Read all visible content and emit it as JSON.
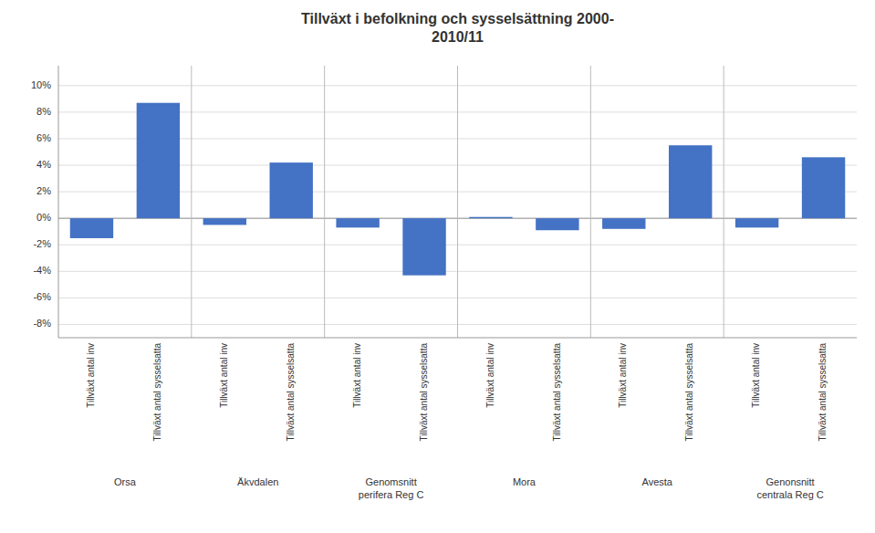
{
  "chart_data": {
    "type": "bar",
    "title": "Tillväxt i befolkning och sysselsättning 2000-\n2010/11",
    "categories": [
      "Tillväxt antal inv",
      "Tillväxt antal sysselsatta",
      "Tillväxt antal inv",
      "Tillväxt antal sysselsatta",
      "Tillväxt antal inv",
      "Tillväxt antal sysselsatta",
      "Tillväxt antal inv",
      "Tillväxt antal sysselsatta",
      "Tillväxt antal inv",
      "Tillväxt antal sysselsatta",
      "Tillväxt antal inv",
      "Tillväxt antal sysselsatta"
    ],
    "groups": [
      "Orsa",
      "Äkvdalen",
      "Genomsnitt\nperifera Reg C",
      "Mora",
      "Avesta",
      "Genonsnitt\ncentrala Reg C"
    ],
    "values": [
      -0.015,
      0.087,
      -0.005,
      0.042,
      -0.007,
      -0.043,
      0.001,
      -0.009,
      -0.008,
      0.055,
      -0.007,
      0.046
    ],
    "color": "#4472C4",
    "ylim": [
      -0.09,
      0.115
    ],
    "yticks": [
      {
        "value": -0.08,
        "label": "-8%"
      },
      {
        "value": -0.06,
        "label": "-6%"
      },
      {
        "value": -0.04,
        "label": "-4%"
      },
      {
        "value": -0.02,
        "label": "-2%"
      },
      {
        "value": 0.0,
        "label": "0%"
      },
      {
        "value": 0.02,
        "label": "2%"
      },
      {
        "value": 0.04,
        "label": "4%"
      },
      {
        "value": 0.06,
        "label": "6%"
      },
      {
        "value": 0.08,
        "label": "8%"
      },
      {
        "value": 0.1,
        "label": "10%"
      }
    ],
    "grid": true
  }
}
